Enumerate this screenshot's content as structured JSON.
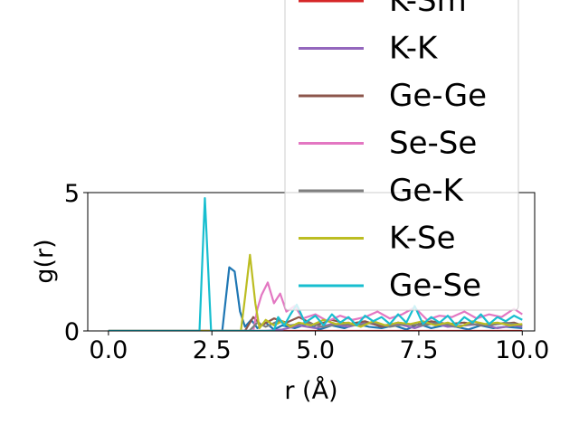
{
  "chart_data": {
    "type": "line",
    "xlabel": "r (Å)",
    "ylabel": "g(r)",
    "xlim": [
      -0.5,
      10.3
    ],
    "ylim": [
      0,
      5
    ],
    "xticks": [
      "0.0",
      "2.5",
      "5.0",
      "7.5",
      "10.0"
    ],
    "xtick_values": [
      0,
      2.5,
      5,
      7.5,
      10
    ],
    "yticks": [
      "0",
      "5"
    ],
    "ytick_values": [
      0,
      5
    ],
    "grid": false,
    "legend_position": "upper-right, extends above the plot area",
    "series": [
      {
        "name": "K-Sm",
        "color": "#d62728",
        "x": [
          0,
          10
        ],
        "y": [
          0,
          0
        ]
      },
      {
        "name": "K-K",
        "color": "#9467bd",
        "x": [
          0,
          3.8,
          4.2,
          4.6,
          5.0,
          5.4,
          5.8,
          6.2,
          6.6,
          7.0,
          7.4,
          7.8,
          8.2,
          8.6,
          9.0,
          9.4,
          9.8,
          10.0
        ],
        "y": [
          0,
          0,
          0.05,
          0.2,
          0.1,
          0.25,
          0.15,
          0.3,
          0.2,
          0.25,
          0.1,
          0.3,
          0.15,
          0.2,
          0.25,
          0.1,
          0.2,
          0.15
        ]
      },
      {
        "name": "Ge-Ge",
        "color": "#8c564b",
        "x": [
          0,
          3.3,
          3.5,
          3.7,
          4.0,
          4.3,
          4.6,
          5.0,
          5.4,
          5.8,
          6.2,
          6.6,
          7.0,
          7.4,
          7.8,
          8.2,
          8.6,
          9.0,
          9.4,
          9.8,
          10.0
        ],
        "y": [
          0,
          0,
          0.5,
          0.2,
          0.45,
          0.3,
          0.5,
          0.2,
          0.4,
          0.25,
          0.35,
          0.15,
          0.3,
          0.2,
          0.35,
          0.25,
          0.3,
          0.2,
          0.25,
          0.3,
          0.2
        ]
      },
      {
        "name": "Se-Se",
        "color": "#e377c2",
        "x": [
          0,
          3.5,
          3.6,
          3.7,
          3.85,
          4.0,
          4.15,
          4.3,
          4.5,
          4.7,
          5.0,
          5.3,
          5.6,
          5.9,
          6.2,
          6.5,
          6.8,
          7.1,
          7.4,
          7.7,
          8.0,
          8.3,
          8.6,
          8.9,
          9.2,
          9.5,
          9.8,
          10.0
        ],
        "y": [
          0,
          0,
          0.8,
          1.3,
          1.75,
          1.0,
          1.35,
          0.7,
          0.9,
          0.45,
          0.6,
          0.35,
          0.55,
          0.4,
          0.5,
          0.7,
          0.45,
          0.6,
          0.85,
          0.4,
          0.55,
          0.5,
          0.7,
          0.45,
          0.6,
          0.5,
          0.8,
          0.6
        ]
      },
      {
        "name": "Ge-K",
        "color": "#7f7f7f",
        "x": [
          0,
          3.4,
          3.6,
          3.8,
          4.1,
          4.4,
          4.8,
          5.2,
          5.6,
          6.0,
          6.4,
          6.8,
          7.2,
          7.6,
          8.0,
          8.4,
          8.8,
          9.2,
          9.6,
          10.0
        ],
        "y": [
          0,
          0,
          0.3,
          0.15,
          0.35,
          0.2,
          0.3,
          0.15,
          0.25,
          0.2,
          0.3,
          0.15,
          0.25,
          0.2,
          0.3,
          0.15,
          0.25,
          0.2,
          0.3,
          0.2
        ]
      },
      {
        "name": "K-Se",
        "color": "#bcbd22",
        "x": [
          0,
          3.2,
          3.3,
          3.42,
          3.55,
          3.65,
          3.8,
          4.0,
          4.2,
          4.4,
          4.6,
          4.9,
          5.2,
          5.5,
          5.8,
          6.1,
          6.4,
          6.7,
          7.0,
          7.3,
          7.6,
          7.9,
          8.2,
          8.5,
          8.8,
          9.1,
          9.4,
          9.7,
          10.0
        ],
        "y": [
          0,
          0,
          1.2,
          2.75,
          1.0,
          0.1,
          0.4,
          0.2,
          0.35,
          0.15,
          0.3,
          0.2,
          0.4,
          0.25,
          0.3,
          0.15,
          0.35,
          0.2,
          0.3,
          0.25,
          0.35,
          0.2,
          0.3,
          0.15,
          0.35,
          0.25,
          0.3,
          0.2,
          0.25
        ]
      },
      {
        "name": "Ge-Se",
        "color": "#17becf",
        "x": [
          0,
          2.2,
          2.33,
          2.48,
          4.0,
          4.1,
          4.25,
          4.4,
          4.55,
          4.75,
          5.0,
          5.2,
          5.4,
          5.6,
          5.8,
          6.0,
          6.2,
          6.4,
          6.6,
          6.8,
          7.0,
          7.2,
          7.4,
          7.6,
          7.8,
          8.0,
          8.2,
          8.4,
          8.6,
          8.8,
          9.0,
          9.2,
          9.4,
          9.6,
          9.8,
          10.0
        ],
        "y": [
          0,
          0,
          4.8,
          0,
          0,
          0.5,
          0.2,
          0.6,
          0.95,
          0.3,
          0.55,
          0.2,
          0.6,
          0.3,
          0.5,
          0.2,
          0.55,
          0.35,
          0.5,
          0.25,
          0.6,
          0.3,
          0.9,
          0.25,
          0.5,
          0.3,
          0.55,
          0.2,
          0.5,
          0.3,
          0.6,
          0.25,
          0.5,
          0.35,
          0.55,
          0.4
        ]
      },
      {
        "name": "",
        "color": "#1f77b4",
        "x": [
          0,
          2.75,
          2.92,
          3.05,
          3.18,
          3.3,
          3.45,
          3.6,
          3.8,
          4.0,
          4.2,
          4.5,
          4.8,
          5.1,
          5.4,
          5.7,
          6.0,
          6.3,
          6.6,
          6.9,
          7.2,
          7.5,
          7.8,
          8.1,
          8.4,
          8.7,
          9.0,
          9.3,
          9.6,
          10.0
        ],
        "y": [
          0,
          0,
          2.3,
          2.15,
          0.7,
          0.15,
          0.4,
          0.1,
          0.3,
          0.05,
          0.2,
          0.1,
          0.25,
          0.05,
          0.2,
          0.1,
          0.25,
          0.15,
          0.1,
          0.2,
          0.05,
          0.25,
          0.1,
          0.2,
          0.15,
          0.05,
          0.2,
          0.1,
          0.15,
          0.1
        ]
      }
    ]
  }
}
